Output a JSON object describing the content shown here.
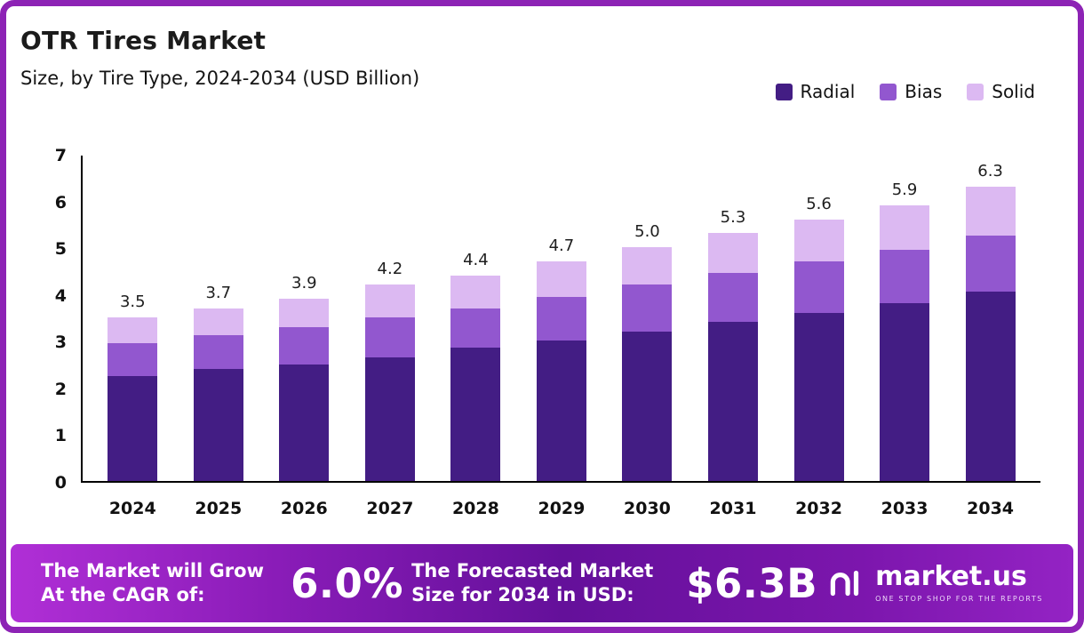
{
  "header": {
    "title": "OTR Tires Market",
    "subtitle": "Size, by Tire Type, 2024-2034 (USD Billion)"
  },
  "chart_data": {
    "type": "bar",
    "stacked": true,
    "title": "OTR Tires Market",
    "subtitle": "Size, by Tire Type, 2024-2034 (USD Billion)",
    "categories": [
      "2024",
      "2025",
      "2026",
      "2027",
      "2028",
      "2029",
      "2030",
      "2031",
      "2032",
      "2033",
      "2034"
    ],
    "series": [
      {
        "name": "Radial",
        "color": "#431d84",
        "values": [
          2.25,
          2.4,
          2.5,
          2.65,
          2.85,
          3.0,
          3.2,
          3.4,
          3.6,
          3.8,
          4.05
        ]
      },
      {
        "name": "Bias",
        "color": "#9257cf",
        "values": [
          0.7,
          0.72,
          0.8,
          0.85,
          0.85,
          0.93,
          1.0,
          1.05,
          1.1,
          1.15,
          1.2
        ]
      },
      {
        "name": "Solid",
        "color": "#dcb9f2",
        "values": [
          0.55,
          0.58,
          0.6,
          0.7,
          0.7,
          0.77,
          0.8,
          0.85,
          0.9,
          0.95,
          1.05
        ]
      }
    ],
    "totals": [
      "3.5",
      "3.7",
      "3.9",
      "4.2",
      "4.4",
      "4.7",
      "5.0",
      "5.3",
      "5.6",
      "5.9",
      "6.3"
    ],
    "xlabel": "",
    "ylabel": "",
    "ylim": [
      0,
      7
    ],
    "yticks": [
      0,
      1,
      2,
      3,
      4,
      5,
      6,
      7
    ],
    "grid": false,
    "legend_position": "top-right"
  },
  "footer": {
    "cagr_label": "The Market will Grow At the CAGR of:",
    "cagr_value": "6.0%",
    "forecast_label": "The Forecasted Market Size for 2034 in USD:",
    "forecast_value": "$6.3B",
    "brand": "market.us",
    "brand_tagline": "ONE STOP SHOP FOR THE REPORTS"
  }
}
